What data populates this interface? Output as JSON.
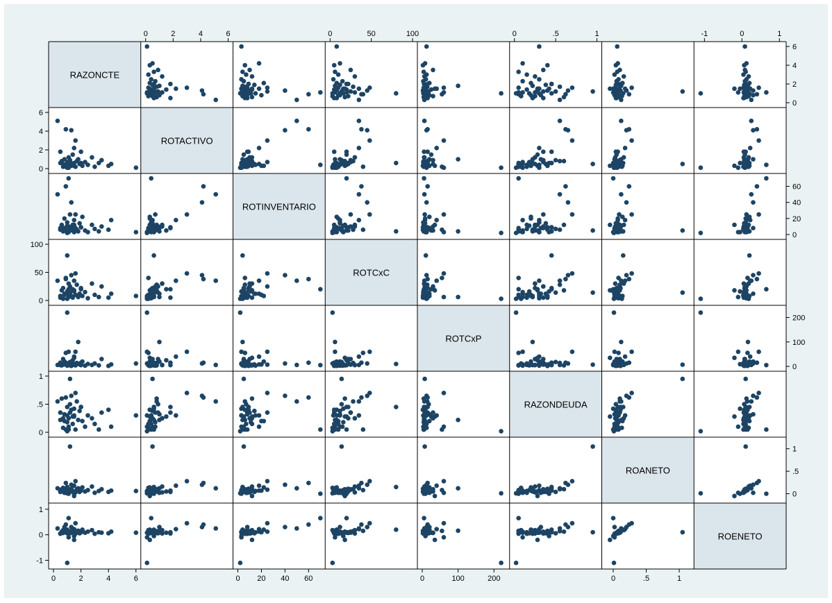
{
  "chart_data": {
    "type": "scatter",
    "variables": [
      "RAZONCTE",
      "ROTACTIVO",
      "ROTINVENTARIO",
      "ROTCxC",
      "ROTCxP",
      "RAZONDEUDA",
      "ROANETO",
      "ROENETO"
    ],
    "axes": [
      {
        "name": "RAZONCTE",
        "range": [
          0,
          6
        ],
        "ticks": [
          0,
          2,
          4,
          6
        ],
        "tick_labels": [
          "0",
          "2",
          "4",
          "6"
        ]
      },
      {
        "name": "ROTACTIVO",
        "range": [
          0,
          6
        ],
        "ticks": [
          0,
          2,
          4,
          6
        ],
        "tick_labels": [
          "0",
          "2",
          "4",
          "6"
        ]
      },
      {
        "name": "ROTINVENTARIO",
        "range": [
          0,
          70
        ],
        "ticks": [
          0,
          20,
          40,
          60
        ],
        "tick_labels": [
          "0",
          "20",
          "40",
          "60"
        ]
      },
      {
        "name": "ROTCxC",
        "range": [
          0,
          100
        ],
        "ticks": [
          0,
          50,
          100
        ],
        "tick_labels": [
          "0",
          "50",
          "100"
        ]
      },
      {
        "name": "ROTCxP",
        "range": [
          0,
          230
        ],
        "ticks": [
          0,
          100,
          200
        ],
        "tick_labels": [
          "0",
          "100",
          "200"
        ]
      },
      {
        "name": "RAZONDEUDA",
        "range": [
          0,
          1
        ],
        "ticks": [
          0,
          0.5,
          1
        ],
        "tick_labels": [
          "0",
          ".5",
          "1"
        ]
      },
      {
        "name": "ROANETO",
        "range": [
          -0.1,
          1.15
        ],
        "ticks": [
          0,
          0.5,
          1
        ],
        "tick_labels": [
          "0",
          ".5",
          "1"
        ]
      },
      {
        "name": "ROENETO",
        "range": [
          -1.15,
          1.05
        ],
        "ticks": [
          -1,
          0,
          1
        ],
        "tick_labels": [
          "-1",
          "0",
          "1"
        ]
      }
    ],
    "observations": [
      [
        6.0,
        0.1,
        3.0,
        8.0,
        12.0,
        0.3,
        0.06,
        0.08
      ],
      [
        0.3,
        5.1,
        50.0,
        35.0,
        6.0,
        0.55,
        0.12,
        0.25
      ],
      [
        0.5,
        1.8,
        8.0,
        5.0,
        15.0,
        0.35,
        0.04,
        0.05
      ],
      [
        0.6,
        0.8,
        12.0,
        18.0,
        4.0,
        0.6,
        0.1,
        0.12
      ],
      [
        0.7,
        0.5,
        5.0,
        22.0,
        30.0,
        0.25,
        0.05,
        0.07
      ],
      [
        0.8,
        0.3,
        20.0,
        10.0,
        8.0,
        0.2,
        0.07,
        0.1
      ],
      [
        0.9,
        0.2,
        6.0,
        40.0,
        55.0,
        0.05,
        0.08,
        0.15
      ],
      [
        1.0,
        0.6,
        4.0,
        80.0,
        10.0,
        0.45,
        0.15,
        0.2
      ],
      [
        1.0,
        0.4,
        15.0,
        12.0,
        3.0,
        0.3,
        0.06,
        0.1
      ],
      [
        1.1,
        1.2,
        10.0,
        30.0,
        5.0,
        0.25,
        0.03,
        0.05
      ],
      [
        1.1,
        0.1,
        3.0,
        6.0,
        60.0,
        0.1,
        0.02,
        -0.1
      ],
      [
        1.2,
        0.9,
        7.0,
        14.0,
        18.0,
        0.5,
        0.04,
        0.06
      ],
      [
        1.2,
        0.7,
        25.0,
        25.0,
        7.0,
        0.35,
        0.09,
        0.12
      ],
      [
        1.3,
        0.3,
        9.0,
        8.0,
        2.0,
        0.4,
        0.11,
        0.15
      ],
      [
        1.3,
        4.1,
        40.0,
        45.0,
        12.0,
        0.65,
        0.2,
        0.3
      ],
      [
        1.4,
        1.5,
        5.0,
        20.0,
        25.0,
        0.28,
        0.05,
        0.08
      ],
      [
        1.4,
        0.4,
        12.0,
        5.0,
        6.0,
        0.15,
        0.06,
        0.1
      ],
      [
        1.5,
        0.6,
        3.0,
        16.0,
        9.0,
        0.42,
        0.0,
        -0.05
      ],
      [
        1.5,
        2.2,
        18.0,
        35.0,
        40.0,
        0.3,
        0.18,
        0.22
      ],
      [
        1.6,
        0.2,
        8.0,
        10.0,
        4.0,
        0.05,
        0.03,
        0.04
      ],
      [
        1.7,
        0.8,
        6.0,
        28.0,
        14.0,
        0.55,
        0.1,
        0.14
      ],
      [
        1.8,
        1.0,
        4.0,
        6.0,
        100.0,
        0.22,
        0.12,
        0.16
      ],
      [
        1.9,
        0.5,
        14.0,
        12.0,
        8.0,
        0.38,
        0.04,
        0.06
      ],
      [
        2.0,
        1.8,
        9.0,
        20.0,
        5.0,
        0.45,
        0.07,
        0.1
      ],
      [
        2.1,
        0.3,
        22.0,
        8.0,
        20.0,
        0.2,
        0.14,
        0.2
      ],
      [
        2.3,
        0.7,
        5.0,
        15.0,
        3.0,
        0.1,
        0.05,
        0.08
      ],
      [
        2.5,
        0.4,
        3.0,
        4.0,
        10.0,
        0.3,
        0.08,
        0.12
      ],
      [
        2.8,
        1.2,
        12.0,
        30.0,
        6.0,
        0.25,
        0.16,
        0.18
      ],
      [
        3.0,
        0.2,
        7.0,
        10.0,
        12.0,
        0.15,
        0.02,
        0.04
      ],
      [
        3.3,
        0.6,
        4.0,
        6.0,
        4.0,
        0.05,
        0.06,
        0.1
      ],
      [
        3.5,
        0.9,
        10.0,
        25.0,
        30.0,
        0.35,
        0.1,
        0.08
      ],
      [
        4.0,
        0.3,
        6.0,
        5.0,
        2.0,
        0.4,
        0.04,
        0.06
      ],
      [
        4.2,
        0.5,
        18.0,
        12.0,
        8.0,
        0.1,
        0.07,
        0.12
      ],
      [
        0.9,
        4.2,
        60.0,
        38.0,
        15.0,
        0.62,
        0.24,
        0.4
      ],
      [
        1.0,
        0.1,
        2.0,
        3.0,
        220.0,
        0.02,
        0.01,
        -1.1
      ],
      [
        1.2,
        0.5,
        5.0,
        14.0,
        7.0,
        0.95,
        1.05,
        0.1
      ],
      [
        0.8,
        1.0,
        8.0,
        12.0,
        20.0,
        0.32,
        0.02,
        0.3
      ],
      [
        1.1,
        0.4,
        70.0,
        20.0,
        5.0,
        0.05,
        0.0,
        0.65
      ],
      [
        1.5,
        0.3,
        12.0,
        18.0,
        35.0,
        0.28,
        -0.05,
        -0.2
      ],
      [
        0.7,
        0.2,
        4.0,
        3.0,
        12.0,
        0.08,
        0.13,
        0.18
      ],
      [
        2.0,
        0.6,
        9.0,
        22.0,
        15.0,
        0.45,
        0.11,
        0.1
      ],
      [
        1.6,
        3.0,
        25.0,
        48.0,
        60.0,
        0.7,
        0.28,
        0.45
      ],
      [
        1.0,
        0.7,
        11.0,
        16.0,
        4.0,
        0.18,
        0.08,
        0.06
      ],
      [
        0.5,
        0.6,
        6.0,
        8.0,
        5.0,
        0.22,
        0.05,
        0.04
      ]
    ]
  }
}
